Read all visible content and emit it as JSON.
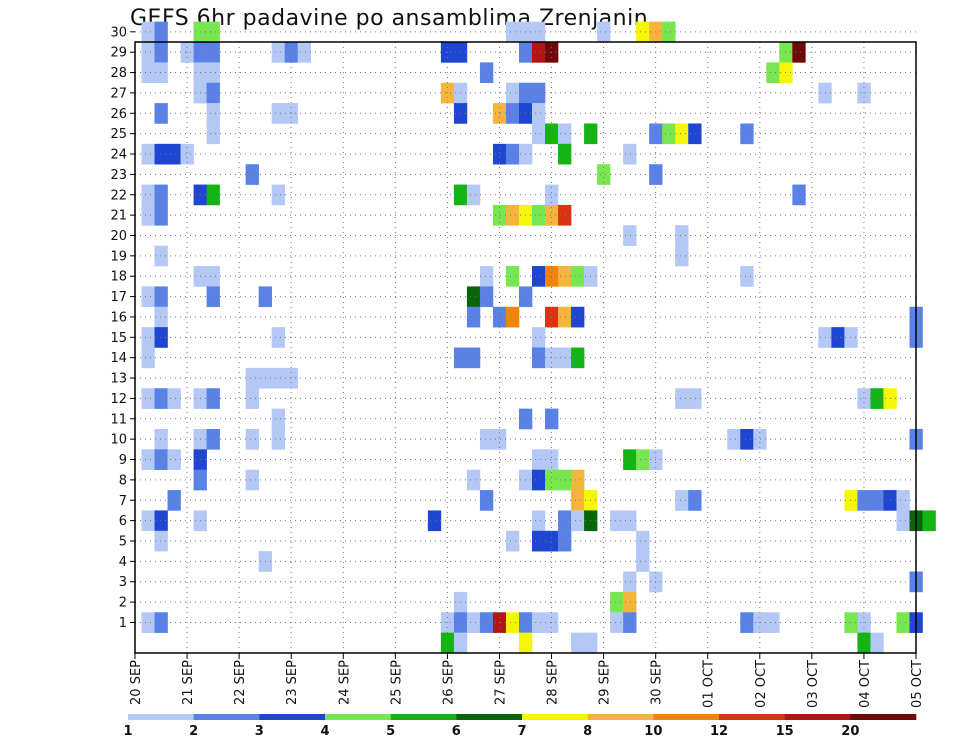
{
  "chart_data": {
    "type": "heatmap",
    "title": "GEFS 6hr padavine po ansamblima Zrenjanin",
    "xlabel": "",
    "ylabel": "",
    "x_tick_labels": [
      "20 SEP",
      "21 SEP",
      "22 SEP",
      "23 SEP",
      "24 SEP",
      "25 SEP",
      "26 SEP",
      "27 SEP",
      "28 SEP",
      "29 SEP",
      "30 SEP",
      "01 OCT",
      "02 OCT",
      "03 OCT",
      "04 OCT",
      "05 OCT"
    ],
    "y_tick_labels": [
      "1",
      "2",
      "3",
      "4",
      "5",
      "6",
      "7",
      "8",
      "9",
      "10",
      "11",
      "12",
      "13",
      "14",
      "15",
      "16",
      "17",
      "18",
      "19",
      "20",
      "21",
      "22",
      "23",
      "24",
      "25",
      "26",
      "27",
      "28",
      "29",
      "30"
    ],
    "x_range_steps": [
      0,
      60
    ],
    "y_range_members": [
      0,
      30
    ],
    "grid": true,
    "colorbar": {
      "position": "bottom",
      "labels": [
        "1",
        "2",
        "3",
        "4",
        "5",
        "6",
        "7",
        "8",
        "10",
        "12",
        "15",
        "20"
      ],
      "colors": [
        "#b4c8f5",
        "#5a82e6",
        "#1e46d2",
        "#78e650",
        "#14b414",
        "#0a640a",
        "#f5f50a",
        "#f5b43c",
        "#f5820a",
        "#dc3214",
        "#b41414",
        "#6e0a0a"
      ]
    },
    "cells": [
      {
        "m": 30,
        "t": [
          [
            1,
            1
          ],
          [
            2,
            2
          ],
          [
            5,
            4
          ],
          [
            6,
            4
          ],
          [
            29,
            1
          ],
          [
            30,
            1
          ],
          [
            31,
            1
          ],
          [
            36,
            1
          ],
          [
            39,
            7
          ],
          [
            40,
            8
          ],
          [
            41,
            4
          ]
        ]
      },
      {
        "m": 29,
        "t": [
          [
            1,
            1
          ],
          [
            2,
            2
          ],
          [
            4,
            1
          ],
          [
            5,
            2
          ],
          [
            6,
            2
          ],
          [
            11,
            1
          ],
          [
            12,
            2
          ],
          [
            13,
            1
          ],
          [
            24,
            3
          ],
          [
            25,
            3
          ],
          [
            30,
            2
          ],
          [
            31,
            11
          ],
          [
            32,
            12
          ],
          [
            50,
            4
          ],
          [
            51,
            12
          ]
        ]
      },
      {
        "m": 28,
        "t": [
          [
            1,
            1
          ],
          [
            2,
            1
          ],
          [
            5,
            1
          ],
          [
            6,
            1
          ],
          [
            27,
            2
          ],
          [
            49,
            4
          ],
          [
            50,
            7
          ]
        ]
      },
      {
        "m": 27,
        "t": [
          [
            5,
            1
          ],
          [
            6,
            2
          ],
          [
            24,
            8
          ],
          [
            25,
            1
          ],
          [
            29,
            1
          ],
          [
            30,
            2
          ],
          [
            31,
            2
          ],
          [
            53,
            1
          ],
          [
            56,
            1
          ]
        ]
      },
      {
        "m": 26,
        "t": [
          [
            2,
            2
          ],
          [
            6,
            1
          ],
          [
            11,
            1
          ],
          [
            12,
            1
          ],
          [
            25,
            3
          ],
          [
            28,
            8
          ],
          [
            29,
            2
          ],
          [
            30,
            3
          ],
          [
            31,
            1
          ]
        ]
      },
      {
        "m": 25,
        "t": [
          [
            6,
            1
          ],
          [
            31,
            1
          ],
          [
            32,
            5
          ],
          [
            33,
            1
          ],
          [
            35,
            5
          ],
          [
            40,
            2
          ],
          [
            41,
            4
          ],
          [
            42,
            7
          ],
          [
            43,
            3
          ],
          [
            47,
            2
          ]
        ]
      },
      {
        "m": 24,
        "t": [
          [
            1,
            1
          ],
          [
            2,
            3
          ],
          [
            3,
            3
          ],
          [
            4,
            1
          ],
          [
            28,
            3
          ],
          [
            29,
            2
          ],
          [
            30,
            1
          ],
          [
            33,
            5
          ],
          [
            38,
            1
          ]
        ]
      },
      {
        "m": 23,
        "t": [
          [
            9,
            2
          ],
          [
            36,
            4
          ],
          [
            40,
            2
          ]
        ]
      },
      {
        "m": 22,
        "t": [
          [
            1,
            1
          ],
          [
            2,
            2
          ],
          [
            5,
            3
          ],
          [
            6,
            5
          ],
          [
            11,
            1
          ],
          [
            25,
            5
          ],
          [
            26,
            1
          ],
          [
            32,
            1
          ],
          [
            51,
            2
          ]
        ]
      },
      {
        "m": 21,
        "t": [
          [
            1,
            1
          ],
          [
            2,
            2
          ],
          [
            28,
            4
          ],
          [
            29,
            8
          ],
          [
            30,
            7
          ],
          [
            31,
            4
          ],
          [
            32,
            8
          ],
          [
            33,
            10
          ]
        ]
      },
      {
        "m": 20,
        "t": [
          [
            38,
            1
          ],
          [
            42,
            1
          ]
        ]
      },
      {
        "m": 19,
        "t": [
          [
            2,
            1
          ],
          [
            42,
            1
          ]
        ]
      },
      {
        "m": 18,
        "t": [
          [
            5,
            1
          ],
          [
            6,
            1
          ],
          [
            27,
            1
          ],
          [
            29,
            4
          ],
          [
            31,
            3
          ],
          [
            32,
            9
          ],
          [
            33,
            8
          ],
          [
            34,
            4
          ],
          [
            35,
            1
          ],
          [
            47,
            1
          ]
        ]
      },
      {
        "m": 17,
        "t": [
          [
            1,
            1
          ],
          [
            2,
            2
          ],
          [
            6,
            2
          ],
          [
            10,
            2
          ],
          [
            26,
            6
          ],
          [
            27,
            2
          ],
          [
            30,
            2
          ]
        ]
      },
      {
        "m": 16,
        "t": [
          [
            2,
            1
          ],
          [
            26,
            2
          ],
          [
            28,
            2
          ],
          [
            29,
            9
          ],
          [
            32,
            10
          ],
          [
            33,
            8
          ],
          [
            34,
            3
          ],
          [
            60,
            2
          ]
        ]
      },
      {
        "m": 15,
        "t": [
          [
            1,
            1
          ],
          [
            2,
            3
          ],
          [
            11,
            1
          ],
          [
            31,
            1
          ],
          [
            53,
            1
          ],
          [
            54,
            3
          ],
          [
            55,
            1
          ],
          [
            60,
            2
          ]
        ]
      },
      {
        "m": 14,
        "t": [
          [
            1,
            1
          ],
          [
            25,
            2
          ],
          [
            26,
            2
          ],
          [
            31,
            2
          ],
          [
            32,
            1
          ],
          [
            33,
            1
          ],
          [
            34,
            5
          ]
        ]
      },
      {
        "m": 13,
        "t": [
          [
            9,
            1
          ],
          [
            10,
            1
          ],
          [
            11,
            1
          ],
          [
            12,
            1
          ]
        ]
      },
      {
        "m": 12,
        "t": [
          [
            1,
            1
          ],
          [
            2,
            2
          ],
          [
            3,
            1
          ],
          [
            5,
            1
          ],
          [
            6,
            2
          ],
          [
            9,
            1
          ],
          [
            42,
            1
          ],
          [
            43,
            1
          ],
          [
            56,
            1
          ],
          [
            57,
            5
          ],
          [
            58,
            7
          ]
        ]
      },
      {
        "m": 11,
        "t": [
          [
            11,
            1
          ],
          [
            30,
            2
          ],
          [
            32,
            2
          ]
        ]
      },
      {
        "m": 10,
        "t": [
          [
            2,
            1
          ],
          [
            5,
            1
          ],
          [
            6,
            2
          ],
          [
            9,
            1
          ],
          [
            11,
            1
          ],
          [
            27,
            1
          ],
          [
            28,
            1
          ],
          [
            46,
            1
          ],
          [
            47,
            3
          ],
          [
            48,
            1
          ],
          [
            60,
            2
          ]
        ]
      },
      {
        "m": 9,
        "t": [
          [
            1,
            1
          ],
          [
            2,
            2
          ],
          [
            3,
            1
          ],
          [
            5,
            3
          ],
          [
            31,
            1
          ],
          [
            32,
            1
          ],
          [
            38,
            5
          ],
          [
            39,
            4
          ],
          [
            40,
            1
          ]
        ]
      },
      {
        "m": 8,
        "t": [
          [
            5,
            2
          ],
          [
            9,
            1
          ],
          [
            26,
            1
          ],
          [
            30,
            1
          ],
          [
            31,
            3
          ],
          [
            32,
            4
          ],
          [
            33,
            4
          ],
          [
            34,
            8
          ]
        ]
      },
      {
        "m": 7,
        "t": [
          [
            3,
            2
          ],
          [
            27,
            2
          ],
          [
            34,
            8
          ],
          [
            35,
            7
          ],
          [
            42,
            1
          ],
          [
            43,
            2
          ],
          [
            55,
            7
          ],
          [
            56,
            2
          ],
          [
            57,
            2
          ],
          [
            58,
            3
          ],
          [
            59,
            1
          ]
        ]
      },
      {
        "m": 6,
        "t": [
          [
            1,
            1
          ],
          [
            2,
            3
          ],
          [
            5,
            1
          ],
          [
            23,
            3
          ],
          [
            31,
            1
          ],
          [
            33,
            2
          ],
          [
            34,
            1
          ],
          [
            35,
            6
          ],
          [
            37,
            1
          ],
          [
            38,
            1
          ],
          [
            59,
            1
          ],
          [
            60,
            6
          ],
          [
            61,
            5
          ]
        ]
      },
      {
        "m": 5,
        "t": [
          [
            2,
            1
          ],
          [
            29,
            1
          ],
          [
            31,
            3
          ],
          [
            32,
            3
          ],
          [
            33,
            2
          ],
          [
            39,
            1
          ]
        ]
      },
      {
        "m": 4,
        "t": [
          [
            10,
            1
          ],
          [
            39,
            1
          ]
        ]
      },
      {
        "m": 3,
        "t": [
          [
            38,
            1
          ],
          [
            40,
            1
          ],
          [
            60,
            2
          ]
        ]
      },
      {
        "m": 2,
        "t": [
          [
            25,
            1
          ],
          [
            37,
            4
          ],
          [
            38,
            8
          ]
        ]
      },
      {
        "m": 1,
        "t": [
          [
            1,
            1
          ],
          [
            2,
            2
          ],
          [
            24,
            1
          ],
          [
            25,
            2
          ],
          [
            26,
            1
          ],
          [
            27,
            2
          ],
          [
            28,
            11
          ],
          [
            29,
            7
          ],
          [
            30,
            2
          ],
          [
            31,
            1
          ],
          [
            32,
            1
          ],
          [
            37,
            1
          ],
          [
            38,
            2
          ],
          [
            47,
            2
          ],
          [
            48,
            1
          ],
          [
            49,
            1
          ],
          [
            55,
            4
          ],
          [
            56,
            1
          ],
          [
            59,
            4
          ],
          [
            60,
            3
          ]
        ]
      },
      {
        "m": 0,
        "t": [
          [
            24,
            5
          ],
          [
            25,
            1
          ],
          [
            30,
            7
          ],
          [
            34,
            1
          ],
          [
            35,
            1
          ],
          [
            56,
            5
          ],
          [
            57,
            1
          ]
        ]
      }
    ]
  }
}
